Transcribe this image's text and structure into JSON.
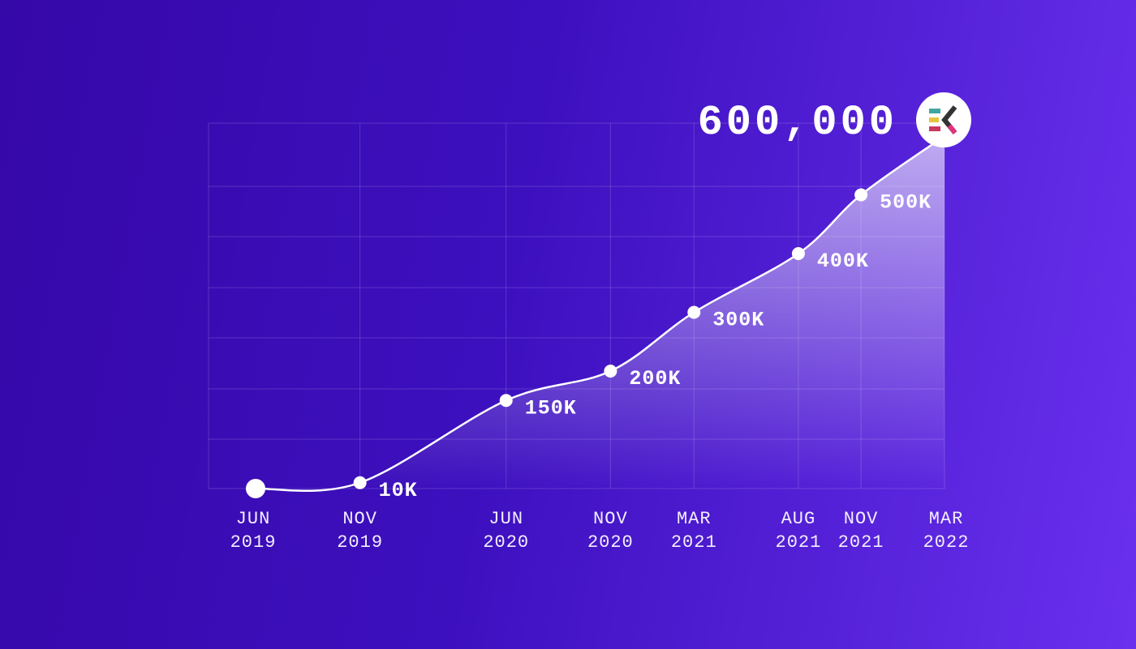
{
  "chart_data": {
    "type": "area",
    "headline": "600,000",
    "categories": [
      [
        "JUN",
        "2019"
      ],
      [
        "NOV",
        "2019"
      ],
      [
        "JUN",
        "2020"
      ],
      [
        "NOV",
        "2020"
      ],
      [
        "MAR",
        "2021"
      ],
      [
        "AUG",
        "2021"
      ],
      [
        "NOV",
        "2021"
      ],
      [
        "MAR",
        "2022"
      ]
    ],
    "x": [
      "2019-06",
      "2019-11",
      "2020-06",
      "2020-11",
      "2021-03",
      "2021-08",
      "2021-11",
      "2022-03"
    ],
    "values": [
      0,
      10000,
      150000,
      200000,
      300000,
      400000,
      500000,
      600000
    ],
    "data_labels": [
      "",
      "10K",
      "150K",
      "200K",
      "300K",
      "400K",
      "500K",
      ""
    ],
    "grid": true,
    "line_color": "#ffffff",
    "background_colors": [
      "#3508a8",
      "#6a30ee"
    ],
    "logo": {
      "icon": "logo-icon",
      "colors": [
        "#3fa7a0",
        "#e8c340",
        "#c9385f",
        "#e0347a",
        "#333333"
      ]
    }
  }
}
